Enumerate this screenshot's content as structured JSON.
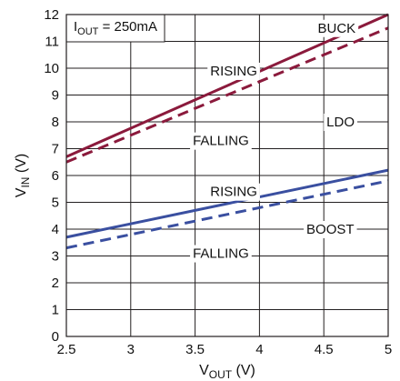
{
  "chart_data": {
    "type": "line",
    "xlabel": "V_OUT (V)",
    "xlabel_main": "V",
    "xlabel_sub": "OUT",
    "xlabel_unit": " (V)",
    "ylabel": "V_IN (V)",
    "ylabel_main": "V",
    "ylabel_sub": "IN",
    "ylabel_unit": " (V)",
    "xlim": [
      2.5,
      5
    ],
    "ylim": [
      0,
      12
    ],
    "xticks": [
      2.5,
      3,
      3.5,
      4,
      4.5,
      5
    ],
    "xtick_labels": [
      "2.5",
      "3",
      "3.5",
      "4",
      "4.5",
      "5"
    ],
    "yticks": [
      0,
      1,
      2,
      3,
      4,
      5,
      6,
      7,
      8,
      9,
      10,
      11,
      12
    ],
    "ytick_labels": [
      "0",
      "1",
      "2",
      "3",
      "4",
      "5",
      "6",
      "7",
      "8",
      "9",
      "10",
      "11",
      "12"
    ],
    "grid": true,
    "condition": {
      "main": "I",
      "sub": "OUT",
      "rest": " = 250mA"
    },
    "series": [
      {
        "name": "RISING",
        "group": "BUCK",
        "color": "#8b1a3c",
        "style": "solid",
        "x": [
          2.5,
          5
        ],
        "y": [
          6.7,
          12.0
        ]
      },
      {
        "name": "FALLING",
        "group": "BUCK",
        "color": "#8b1a3c",
        "style": "dashed",
        "x": [
          2.5,
          5
        ],
        "y": [
          6.5,
          11.5
        ]
      },
      {
        "name": "RISING",
        "group": "BOOST",
        "color": "#3a4fa0",
        "style": "solid",
        "x": [
          2.5,
          5
        ],
        "y": [
          3.7,
          6.2
        ]
      },
      {
        "name": "FALLING",
        "group": "BOOST",
        "color": "#3a4fa0",
        "style": "dashed",
        "x": [
          2.5,
          5
        ],
        "y": [
          3.3,
          5.8
        ]
      }
    ],
    "annotations": [
      {
        "id": "buck",
        "text": "BUCK",
        "x": 4.6,
        "y": 11.5
      },
      {
        "id": "ldo",
        "text": "LDO",
        "x": 4.63,
        "y": 8.0
      },
      {
        "id": "boost",
        "text": "BOOST",
        "x": 4.55,
        "y": 4.0
      },
      {
        "id": "buck-rising",
        "text": "RISING",
        "x": 3.8,
        "y": 9.9
      },
      {
        "id": "buck-falling",
        "text": "FALLING",
        "x": 3.7,
        "y": 7.3
      },
      {
        "id": "boost-rising",
        "text": "RISING",
        "x": 3.8,
        "y": 5.4
      },
      {
        "id": "boost-falling",
        "text": "FALLING",
        "x": 3.7,
        "y": 3.1
      }
    ]
  }
}
